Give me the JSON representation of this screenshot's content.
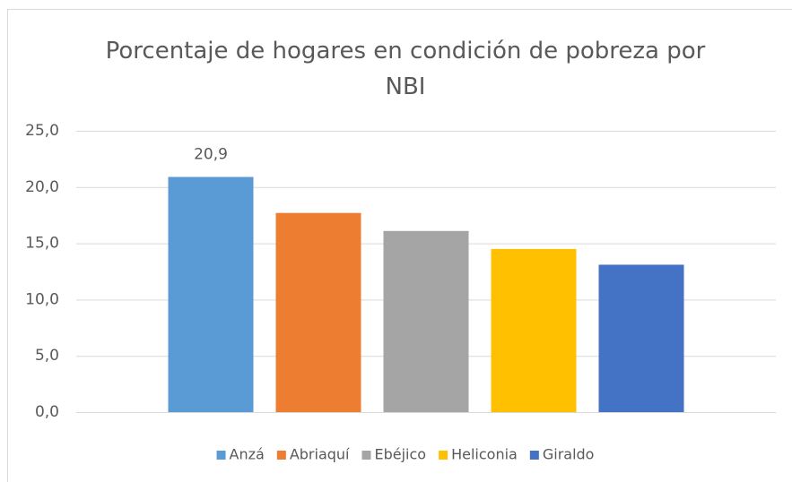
{
  "chart_data": {
    "type": "bar",
    "title": "Porcentaje de hogares en condición de pobreza por NBI",
    "categories": [
      null
    ],
    "series": [
      {
        "name": "Anzá",
        "color": "#5b9bd5",
        "values": [
          20.9
        ],
        "value_labels": [
          "20,9"
        ]
      },
      {
        "name": "Abriaquí",
        "color": "#ed7d31",
        "values": [
          17.7
        ]
      },
      {
        "name": "Ebéjico",
        "color": "#a5a5a5",
        "values": [
          16.1
        ]
      },
      {
        "name": "Heliconia",
        "color": "#ffc000",
        "values": [
          14.5
        ]
      },
      {
        "name": "Giraldo",
        "color": "#4472c4",
        "values": [
          13.1
        ]
      }
    ],
    "ylim": [
      0,
      25
    ],
    "yticks": [
      {
        "value": 0,
        "label": "0,0"
      },
      {
        "value": 5,
        "label": "5,0"
      },
      {
        "value": 10,
        "label": "10,0"
      },
      {
        "value": 15,
        "label": "15,0"
      },
      {
        "value": 20,
        "label": "20,0"
      },
      {
        "value": 25,
        "label": "25,0"
      }
    ],
    "grid": true,
    "legend": "bottom"
  }
}
